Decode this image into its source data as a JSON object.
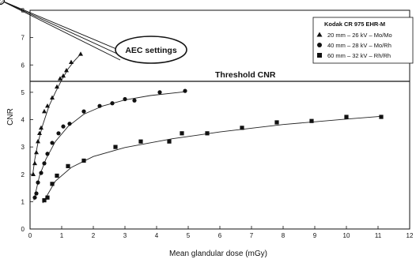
{
  "chart_data": {
    "type": "scatter",
    "title": "",
    "xlabel": "Mean glandular dose (mGy)",
    "ylabel": "CNR",
    "xlim": [
      0,
      12
    ],
    "ylim": [
      0,
      8
    ],
    "x_ticks": [
      0,
      1,
      2,
      3,
      4,
      5,
      6,
      7,
      8,
      9,
      10,
      11,
      12
    ],
    "y_ticks": [
      0,
      1,
      2,
      3,
      4,
      5,
      6,
      7,
      8
    ],
    "grid": false,
    "legend": {
      "title": "Kodak CR 975 EHR-M",
      "placement": "top-right",
      "entries": [
        {
          "marker": "triangle",
          "label": "20 mm – 26 kV – Mo/Mo"
        },
        {
          "marker": "circle",
          "label": "40 mm – 28 kV – Mo/Rh"
        },
        {
          "marker": "square",
          "label": "60 mm – 32 kV – Rh/Rh"
        }
      ]
    },
    "threshold": {
      "label": "Threshold CNR",
      "value": 5.4
    },
    "callout": {
      "label": "AEC settings",
      "points": [
        {
          "x": 0.45,
          "y": 4.3
        },
        {
          "x": 0.9,
          "y": 3.5
        },
        {
          "x": 2.2,
          "y": 2.75
        }
      ]
    },
    "series": [
      {
        "marker": "triangle",
        "points": [
          [
            0.1,
            2.0
          ],
          [
            0.15,
            2.4
          ],
          [
            0.2,
            2.8
          ],
          [
            0.25,
            3.2
          ],
          [
            0.3,
            3.5
          ],
          [
            0.35,
            3.7
          ],
          [
            0.45,
            4.3
          ],
          [
            0.55,
            4.5
          ],
          [
            0.7,
            4.8
          ],
          [
            0.85,
            5.2
          ],
          [
            0.95,
            5.5
          ],
          [
            1.05,
            5.6
          ],
          [
            1.15,
            5.8
          ],
          [
            1.3,
            6.1
          ],
          [
            1.6,
            6.4
          ]
        ],
        "fit": [
          [
            0.08,
            1.95
          ],
          [
            0.15,
            2.55
          ],
          [
            0.25,
            3.15
          ],
          [
            0.4,
            3.8
          ],
          [
            0.6,
            4.5
          ],
          [
            0.8,
            5.0
          ],
          [
            1.0,
            5.45
          ],
          [
            1.2,
            5.85
          ],
          [
            1.4,
            6.15
          ],
          [
            1.6,
            6.4
          ]
        ]
      },
      {
        "marker": "circle",
        "points": [
          [
            0.15,
            1.15
          ],
          [
            0.2,
            1.3
          ],
          [
            0.25,
            1.7
          ],
          [
            0.35,
            2.05
          ],
          [
            0.45,
            2.4
          ],
          [
            0.55,
            2.75
          ],
          [
            0.7,
            3.15
          ],
          [
            0.9,
            3.5
          ],
          [
            1.05,
            3.75
          ],
          [
            1.25,
            3.85
          ],
          [
            1.7,
            4.3
          ],
          [
            2.2,
            4.5
          ],
          [
            2.6,
            4.6
          ],
          [
            3.0,
            4.75
          ],
          [
            3.3,
            4.7
          ],
          [
            4.1,
            5.0
          ],
          [
            4.9,
            5.05
          ]
        ],
        "fit": [
          [
            0.12,
            1.05
          ],
          [
            0.3,
            1.95
          ],
          [
            0.5,
            2.55
          ],
          [
            0.8,
            3.2
          ],
          [
            1.2,
            3.75
          ],
          [
            1.7,
            4.2
          ],
          [
            2.3,
            4.5
          ],
          [
            3.0,
            4.72
          ],
          [
            3.8,
            4.88
          ],
          [
            4.9,
            5.02
          ]
        ]
      },
      {
        "marker": "square",
        "points": [
          [
            0.45,
            1.05
          ],
          [
            0.55,
            1.15
          ],
          [
            0.7,
            1.65
          ],
          [
            0.85,
            1.95
          ],
          [
            1.2,
            2.3
          ],
          [
            1.7,
            2.5
          ],
          [
            2.7,
            3.0
          ],
          [
            3.5,
            3.2
          ],
          [
            4.4,
            3.2
          ],
          [
            4.8,
            3.5
          ],
          [
            5.6,
            3.5
          ],
          [
            6.7,
            3.7
          ],
          [
            7.8,
            3.9
          ],
          [
            8.9,
            3.95
          ],
          [
            10.0,
            4.1
          ],
          [
            11.1,
            4.1
          ]
        ],
        "fit": [
          [
            0.4,
            0.95
          ],
          [
            0.8,
            1.75
          ],
          [
            1.3,
            2.25
          ],
          [
            2.0,
            2.65
          ],
          [
            3.0,
            2.98
          ],
          [
            4.5,
            3.3
          ],
          [
            6.0,
            3.55
          ],
          [
            8.0,
            3.82
          ],
          [
            10.0,
            4.02
          ],
          [
            11.1,
            4.12
          ]
        ]
      }
    ]
  }
}
